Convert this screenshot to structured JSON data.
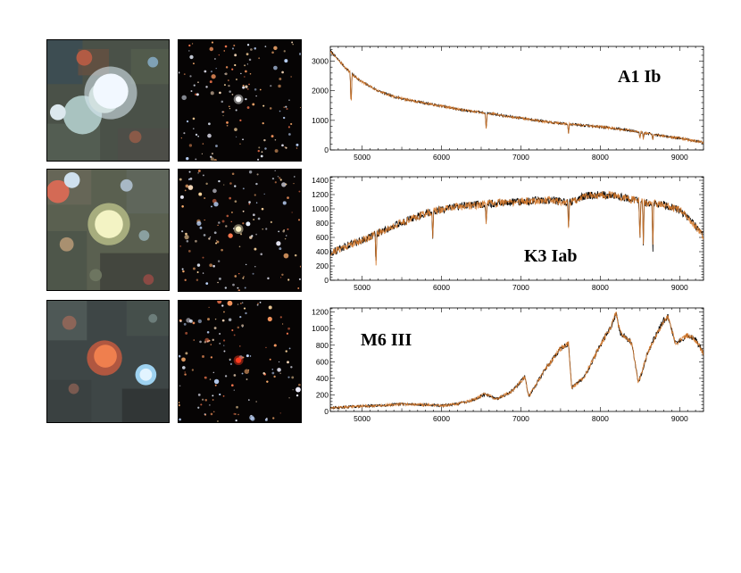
{
  "chart_data": [
    {
      "type": "line",
      "title": "A1 Ib",
      "xlim": [
        4600,
        9300
      ],
      "ylim": [
        0,
        3500
      ],
      "xticks": [
        5000,
        6000,
        7000,
        8000,
        9000
      ],
      "yticks": [
        0,
        1000,
        2000,
        3000
      ],
      "series": [
        {
          "color": "#000000",
          "points": [
            [
              4600,
              3350
            ],
            [
              4700,
              3050
            ],
            [
              4800,
              2750
            ],
            [
              4900,
              2500
            ],
            [
              5000,
              2300
            ],
            [
              5200,
              2000
            ],
            [
              5400,
              1800
            ],
            [
              5600,
              1680
            ],
            [
              5800,
              1580
            ],
            [
              6000,
              1480
            ],
            [
              6200,
              1380
            ],
            [
              6400,
              1300
            ],
            [
              6600,
              1240
            ],
            [
              6800,
              1150
            ],
            [
              7000,
              1080
            ],
            [
              7200,
              1000
            ],
            [
              7400,
              920
            ],
            [
              7600,
              880
            ],
            [
              7800,
              830
            ],
            [
              8000,
              780
            ],
            [
              8200,
              720
            ],
            [
              8400,
              650
            ],
            [
              8600,
              560
            ],
            [
              8800,
              470
            ],
            [
              9000,
              400
            ],
            [
              9200,
              300
            ],
            [
              9300,
              250
            ]
          ]
        },
        {
          "color": "#d4782a",
          "points": [
            [
              4600,
              3350
            ],
            [
              4700,
              3050
            ],
            [
              4800,
              2750
            ],
            [
              4900,
              2500
            ],
            [
              5000,
              2300
            ],
            [
              5200,
              2000
            ],
            [
              5400,
              1800
            ],
            [
              5600,
              1680
            ],
            [
              5800,
              1580
            ],
            [
              6000,
              1480
            ],
            [
              6200,
              1380
            ],
            [
              6400,
              1300
            ],
            [
              6600,
              1240
            ],
            [
              6800,
              1150
            ],
            [
              7000,
              1080
            ],
            [
              7200,
              1000
            ],
            [
              7400,
              920
            ],
            [
              7600,
              880
            ],
            [
              7800,
              830
            ],
            [
              8000,
              780
            ],
            [
              8200,
              720
            ],
            [
              8400,
              650
            ],
            [
              8600,
              560
            ],
            [
              8800,
              470
            ],
            [
              9000,
              400
            ],
            [
              9200,
              300
            ],
            [
              9300,
              250
            ]
          ]
        }
      ],
      "absorption_lines": [
        [
          4861,
          1150
        ],
        [
          6563,
          600
        ],
        [
          7600,
          300
        ],
        [
          8498,
          200
        ],
        [
          8542,
          200
        ],
        [
          8662,
          200
        ]
      ]
    },
    {
      "type": "line",
      "title": "K3 Iab",
      "xlim": [
        4600,
        9300
      ],
      "ylim": [
        0,
        1450
      ],
      "xticks": [
        5000,
        6000,
        7000,
        8000,
        9000
      ],
      "yticks": [
        0,
        200,
        400,
        600,
        800,
        1000,
        1200,
        1400
      ],
      "series": [
        {
          "color": "#000000",
          "points": [
            [
              4600,
              380
            ],
            [
              4800,
              480
            ],
            [
              5000,
              560
            ],
            [
              5200,
              660
            ],
            [
              5400,
              760
            ],
            [
              5600,
              850
            ],
            [
              5800,
              940
            ],
            [
              6000,
              990
            ],
            [
              6200,
              1030
            ],
            [
              6400,
              1050
            ],
            [
              6600,
              1070
            ],
            [
              6800,
              1090
            ],
            [
              7000,
              1100
            ],
            [
              7200,
              1120
            ],
            [
              7400,
              1120
            ],
            [
              7600,
              1080
            ],
            [
              7800,
              1180
            ],
            [
              8000,
              1200
            ],
            [
              8200,
              1180
            ],
            [
              8400,
              1130
            ],
            [
              8600,
              1080
            ],
            [
              8800,
              1060
            ],
            [
              9000,
              980
            ],
            [
              9200,
              760
            ],
            [
              9300,
              620
            ]
          ]
        },
        {
          "color": "#d4782a",
          "points": [
            [
              4600,
              380
            ],
            [
              4800,
              480
            ],
            [
              5000,
              560
            ],
            [
              5200,
              660
            ],
            [
              5400,
              760
            ],
            [
              5600,
              850
            ],
            [
              5800,
              940
            ],
            [
              6000,
              990
            ],
            [
              6200,
              1030
            ],
            [
              6400,
              1050
            ],
            [
              6600,
              1070
            ],
            [
              6800,
              1090
            ],
            [
              7000,
              1100
            ],
            [
              7200,
              1120
            ],
            [
              7400,
              1120
            ],
            [
              7600,
              1080
            ],
            [
              7800,
              1180
            ],
            [
              8000,
              1200
            ],
            [
              8200,
              1180
            ],
            [
              8400,
              1130
            ],
            [
              8600,
              1080
            ],
            [
              8800,
              1060
            ],
            [
              9000,
              980
            ],
            [
              9200,
              760
            ],
            [
              9300,
              620
            ]
          ]
        }
      ],
      "absorption_lines": [
        [
          5175,
          450
        ],
        [
          5890,
          350
        ],
        [
          6563,
          250
        ],
        [
          7600,
          350
        ],
        [
          8498,
          550
        ],
        [
          8542,
          600
        ],
        [
          8662,
          620
        ]
      ]
    },
    {
      "type": "line",
      "title": "M6 III",
      "xlim": [
        4600,
        9300
      ],
      "ylim": [
        0,
        1250
      ],
      "xticks": [
        5000,
        6000,
        7000,
        8000,
        9000
      ],
      "yticks": [
        0,
        200,
        400,
        600,
        800,
        1000,
        1200
      ],
      "series": [
        {
          "color": "#000000",
          "points": [
            [
              4600,
              40
            ],
            [
              4900,
              60
            ],
            [
              5200,
              70
            ],
            [
              5500,
              90
            ],
            [
              5800,
              80
            ],
            [
              6000,
              70
            ],
            [
              6200,
              90
            ],
            [
              6400,
              140
            ],
            [
              6550,
              210
            ],
            [
              6700,
              150
            ],
            [
              6900,
              250
            ],
            [
              7050,
              420
            ],
            [
              7100,
              180
            ],
            [
              7300,
              500
            ],
            [
              7500,
              760
            ],
            [
              7600,
              820
            ],
            [
              7640,
              280
            ],
            [
              7800,
              420
            ],
            [
              8000,
              800
            ],
            [
              8150,
              1050
            ],
            [
              8200,
              1190
            ],
            [
              8250,
              960
            ],
            [
              8400,
              820
            ],
            [
              8480,
              340
            ],
            [
              8600,
              720
            ],
            [
              8700,
              920
            ],
            [
              8800,
              1100
            ],
            [
              8850,
              1150
            ],
            [
              8950,
              820
            ],
            [
              9100,
              920
            ],
            [
              9200,
              870
            ],
            [
              9300,
              700
            ]
          ]
        },
        {
          "color": "#d4782a",
          "points": [
            [
              4600,
              40
            ],
            [
              4900,
              60
            ],
            [
              5200,
              70
            ],
            [
              5500,
              90
            ],
            [
              5800,
              80
            ],
            [
              6000,
              70
            ],
            [
              6200,
              90
            ],
            [
              6400,
              140
            ],
            [
              6550,
              210
            ],
            [
              6700,
              150
            ],
            [
              6900,
              250
            ],
            [
              7050,
              420
            ],
            [
              7100,
              180
            ],
            [
              7300,
              500
            ],
            [
              7500,
              760
            ],
            [
              7600,
              820
            ],
            [
              7640,
              280
            ],
            [
              7800,
              420
            ],
            [
              8000,
              800
            ],
            [
              8150,
              1050
            ],
            [
              8200,
              1190
            ],
            [
              8250,
              960
            ],
            [
              8400,
              820
            ],
            [
              8480,
              340
            ],
            [
              8600,
              720
            ],
            [
              8700,
              920
            ],
            [
              8800,
              1100
            ],
            [
              8850,
              1150
            ],
            [
              8950,
              820
            ],
            [
              9100,
              920
            ],
            [
              9200,
              870
            ],
            [
              9300,
              700
            ]
          ]
        }
      ],
      "absorption_lines": []
    }
  ],
  "thumbnails": [
    {
      "row": 0,
      "kind": "zoom",
      "bg": "#4a5148"
    },
    {
      "row": 0,
      "kind": "field",
      "bg": "#060404"
    },
    {
      "row": 1,
      "kind": "zoom",
      "bg": "#5a6050"
    },
    {
      "row": 1,
      "kind": "field",
      "bg": "#080505"
    },
    {
      "row": 2,
      "kind": "zoom",
      "bg": "#3e4646"
    },
    {
      "row": 2,
      "kind": "field",
      "bg": "#060404"
    }
  ]
}
